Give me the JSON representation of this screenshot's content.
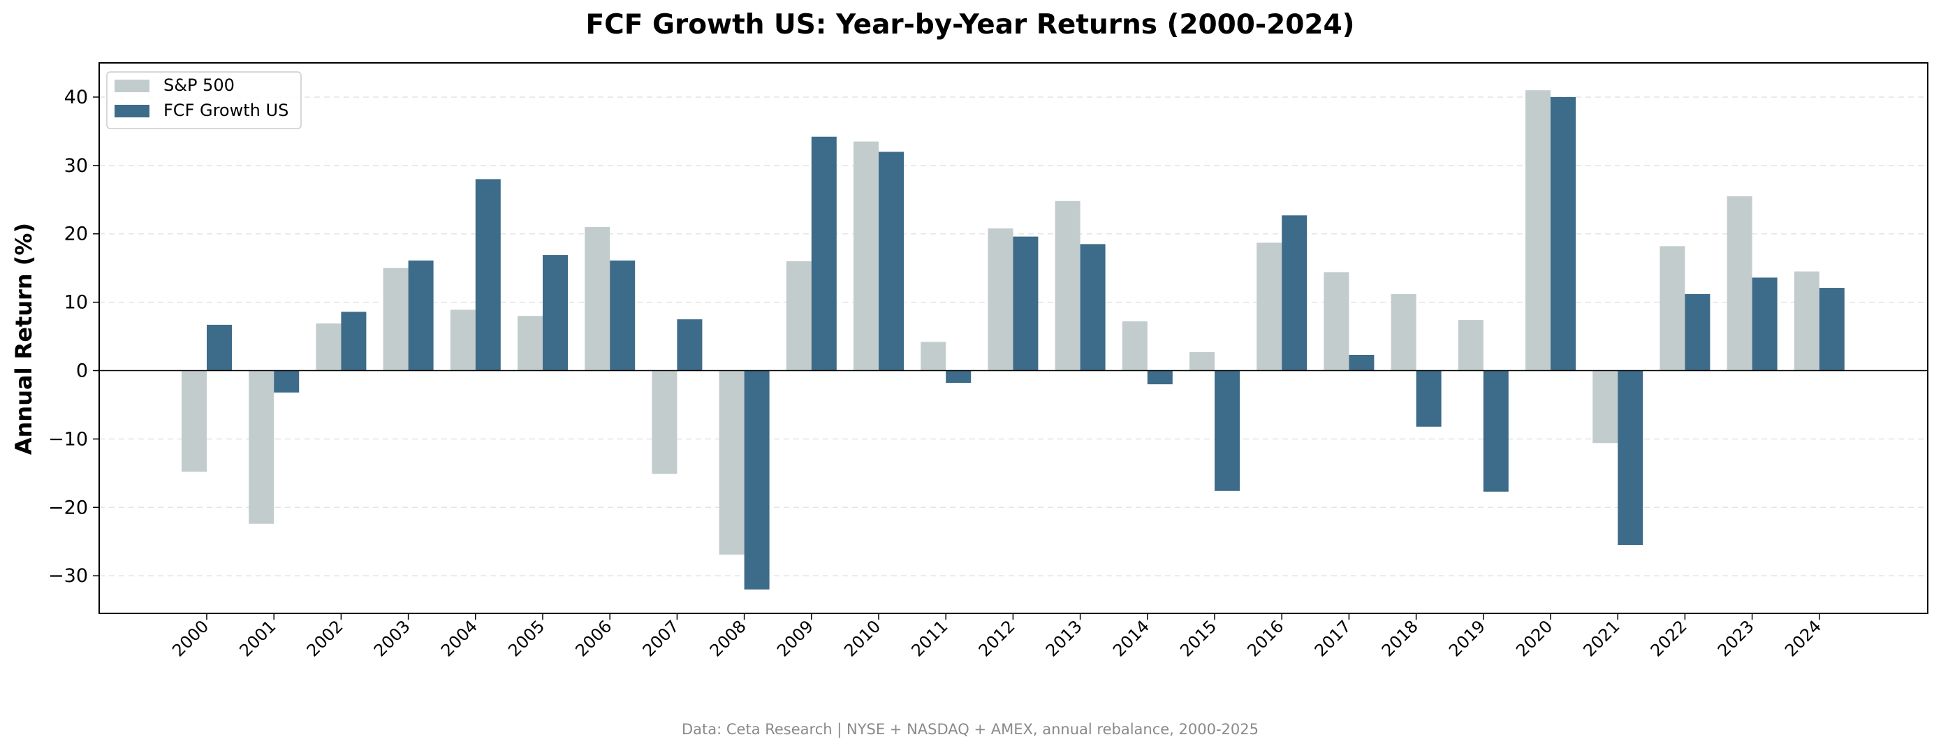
{
  "chart_data": {
    "type": "bar",
    "title": "FCF Growth US: Year-by-Year Returns (2000-2024)",
    "ylabel": "Annual Return (%)",
    "xlabel": "",
    "ylim": [
      -35.5,
      45
    ],
    "yticks": [
      -30,
      -20,
      -10,
      0,
      10,
      20,
      30,
      40
    ],
    "grid": "y-dashed",
    "legend_position": "top-left",
    "categories": [
      "2000",
      "2001",
      "2002",
      "2003",
      "2004",
      "2005",
      "2006",
      "2007",
      "2008",
      "2009",
      "2010",
      "2011",
      "2012",
      "2013",
      "2014",
      "2015",
      "2016",
      "2017",
      "2018",
      "2019",
      "2020",
      "2021",
      "2022",
      "2023",
      "2024"
    ],
    "series": [
      {
        "name": "S&P 500",
        "color": "#c3cccd",
        "values": [
          -14.8,
          -22.4,
          6.9,
          15.0,
          8.9,
          8.0,
          21.0,
          -15.1,
          -26.9,
          16.0,
          33.5,
          4.2,
          20.8,
          24.8,
          7.2,
          2.7,
          18.7,
          14.4,
          11.2,
          7.4,
          41.0,
          -10.6,
          18.2,
          25.5,
          14.5
        ]
      },
      {
        "name": "FCF Growth US",
        "color": "#3d6b8a",
        "values": [
          6.7,
          -3.2,
          8.6,
          16.1,
          28.0,
          16.9,
          16.1,
          7.5,
          -32.0,
          34.2,
          32.0,
          -1.8,
          19.6,
          18.5,
          -2.0,
          -17.6,
          22.7,
          2.3,
          -8.2,
          -17.7,
          40.0,
          -25.5,
          11.2,
          13.6,
          12.1
        ]
      }
    ],
    "source_note": "Data: Ceta Research | NYSE + NASDAQ + AMEX, annual rebalance, 2000-2025"
  }
}
